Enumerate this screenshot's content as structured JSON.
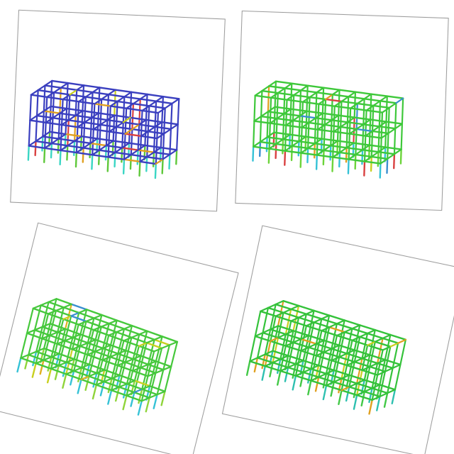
{
  "panels": [
    {
      "id": "tl",
      "base_color": "#3a3fbf",
      "column_low": [
        "#3ad6c4",
        "#5ec83a"
      ],
      "hot_colors": [
        "#d94040",
        "#e0a020",
        "#c8d020"
      ],
      "bays_x": 8,
      "bays_y": 3,
      "stories": 3
    },
    {
      "id": "tr",
      "base_color": "#3ec83a",
      "column_low": [
        "#35c2d6",
        "#6cd43a"
      ],
      "hot_colors": [
        "#e0a020",
        "#c8d020",
        "#d94040",
        "#3a8fd0"
      ],
      "bays_x": 8,
      "bays_y": 3,
      "stories": 3
    },
    {
      "id": "bl",
      "base_color": "#46c83c",
      "column_low": [
        "#35c2d6",
        "#8fd43a"
      ],
      "hot_colors": [
        "#e0b020",
        "#c8d020",
        "#3a8fd0"
      ],
      "bays_x": 8,
      "bays_y": 3,
      "stories": 3
    },
    {
      "id": "br",
      "base_color": "#34c23a",
      "column_low": [
        "#42c846",
        "#2ec0b0"
      ],
      "hot_colors": [
        "#e0a020",
        "#c8d020"
      ],
      "bays_x": 8,
      "bays_y": 3,
      "stories": 3
    }
  ]
}
